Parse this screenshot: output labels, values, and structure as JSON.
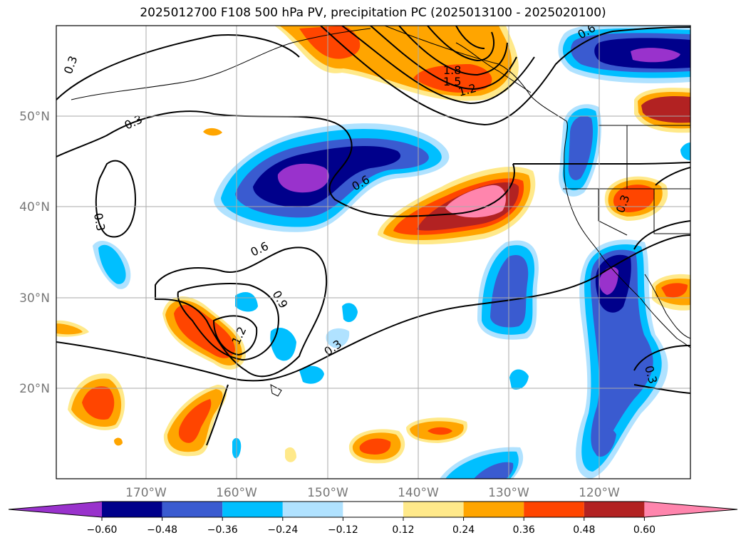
{
  "title": "2025012700 F108 500 hPa PV, precipitation PC (2025013100 - 2025020100)",
  "map": {
    "lon_range": [
      -180,
      -110
    ],
    "lat_range": [
      10,
      60
    ],
    "lat_ticks": [
      "50°N",
      "40°N",
      "30°N",
      "20°N"
    ],
    "lon_ticks": [
      "170°W",
      "160°W",
      "150°W",
      "140°W",
      "130°W",
      "120°W"
    ],
    "contour_labels": [
      "0.3",
      "0.3",
      "0.3",
      "0.3",
      "0.3",
      "0.3",
      "0.6",
      "0.6",
      "0.6",
      "0.9",
      "1.2",
      "1.2",
      "1.5",
      "1.8"
    ]
  },
  "colorbar": {
    "ticks": [
      "−0.60",
      "−0.48",
      "−0.36",
      "−0.24",
      "−0.12",
      "0.12",
      "0.24",
      "0.36",
      "0.48",
      "0.60"
    ],
    "colors": [
      "#9932cc",
      "#00008b",
      "#3a5bd0",
      "#00bfff",
      "#b0e2ff",
      "#ffffff",
      "#ffe98a",
      "#ffa500",
      "#ff4500",
      "#b22222",
      "#ff85ad"
    ]
  }
}
